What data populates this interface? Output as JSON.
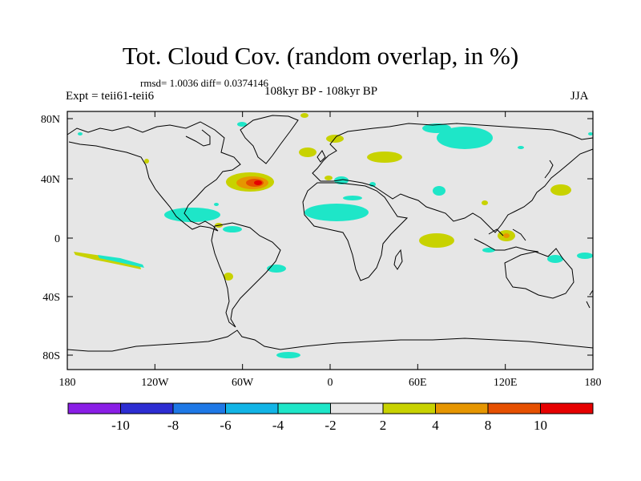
{
  "title": "Tot. Cloud Cov. (random overlap, in %)",
  "stats": "rmsd= 1.0036  diff= 0.0374146",
  "experiment": "Expt = teii61-teii6",
  "period": "108kyr BP - 108kyr BP",
  "season": "JJA",
  "map": {
    "x_ticks": [
      "180",
      "120W",
      "60W",
      "0",
      "60E",
      "120E",
      "180"
    ],
    "y_ticks": [
      "80N",
      "40N",
      "0",
      "40S",
      "80S"
    ],
    "background_color": "#e6e6e6"
  },
  "colorbar": {
    "boundaries": [
      "-10",
      "-8",
      "-6",
      "-4",
      "-2",
      "2",
      "4",
      "8",
      "10"
    ],
    "colors": [
      "#8a1ee6",
      "#2d2dd2",
      "#1e78e6",
      "#12b4e6",
      "#1ee6c8",
      "#e6e6e6",
      "#c8d200",
      "#e69600",
      "#e65000",
      "#e60000"
    ]
  }
}
